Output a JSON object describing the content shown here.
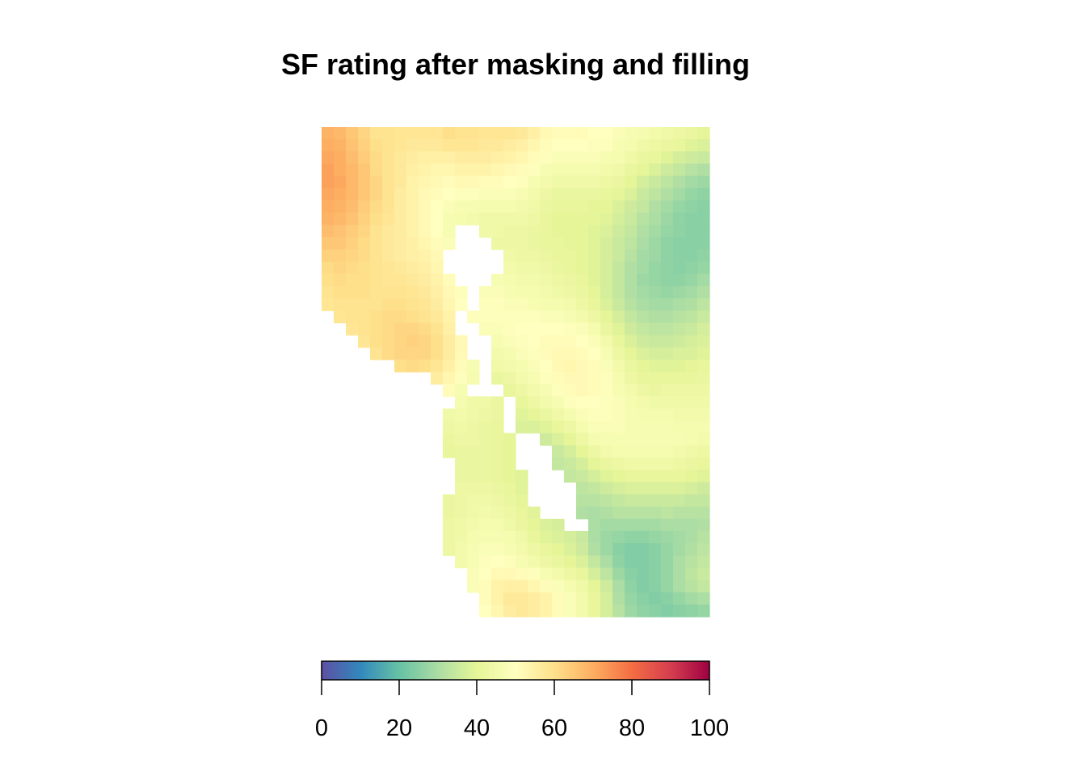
{
  "chart_data": {
    "type": "heatmap",
    "title": "SF rating after masking and filling",
    "xlabel": "",
    "ylabel": "",
    "grid": false,
    "legend": "bottom",
    "colorbar": {
      "min": 0,
      "max": 100,
      "ticks": [
        0,
        20,
        40,
        60,
        80,
        100
      ],
      "tick_labels": [
        "0",
        "20",
        "40",
        "60",
        "80",
        "100"
      ],
      "palette": [
        "#5E4FA2",
        "#3288BD",
        "#66C2A5",
        "#ABDDA4",
        "#E6F598",
        "#FFFFBF",
        "#FEE08B",
        "#FDAE61",
        "#F46D43",
        "#D53E4F",
        "#9E0142"
      ]
    },
    "grid_size": {
      "cols": 32,
      "rows": 40
    },
    "values": [
      [
        69,
        68,
        65,
        62,
        59,
        59,
        58,
        58,
        58,
        58,
        60,
        59,
        59,
        58,
        58,
        58,
        57,
        55,
        52,
        51,
        51,
        51,
        50,
        50,
        48,
        47,
        46,
        45,
        44,
        43,
        42,
        40
      ],
      [
        70,
        69,
        66,
        63,
        60,
        59,
        58,
        57,
        57,
        57,
        58,
        58,
        58,
        57,
        57,
        56,
        55,
        53,
        51,
        50,
        50,
        50,
        49,
        49,
        47,
        46,
        44,
        43,
        42,
        41,
        39,
        38
      ],
      [
        71,
        70,
        67,
        64,
        61,
        59,
        57,
        56,
        55,
        55,
        55,
        56,
        56,
        56,
        55,
        54,
        53,
        51,
        49,
        48,
        48,
        48,
        48,
        47,
        46,
        44,
        42,
        41,
        39,
        37,
        36,
        35
      ],
      [
        72,
        70,
        68,
        65,
        61,
        59,
        57,
        55,
        54,
        53,
        53,
        54,
        54,
        54,
        53,
        52,
        51,
        49,
        47,
        46,
        46,
        46,
        46,
        45,
        44,
        42,
        40,
        38,
        36,
        34,
        32,
        31
      ],
      [
        72,
        71,
        68,
        65,
        62,
        59,
        57,
        54,
        53,
        52,
        51,
        52,
        52,
        51,
        51,
        50,
        49,
        47,
        45,
        44,
        44,
        44,
        44,
        43,
        42,
        40,
        37,
        35,
        33,
        31,
        29,
        28
      ],
      [
        71,
        70,
        68,
        65,
        62,
        59,
        56,
        54,
        52,
        51,
        50,
        49,
        49,
        48,
        48,
        48,
        47,
        45,
        43,
        42,
        42,
        42,
        42,
        41,
        40,
        38,
        35,
        33,
        31,
        29,
        27,
        26
      ],
      [
        70,
        69,
        67,
        64,
        61,
        59,
        56,
        54,
        52,
        50,
        48,
        47,
        47,
        46,
        46,
        46,
        45,
        44,
        42,
        41,
        41,
        41,
        40,
        40,
        38,
        36,
        34,
        31,
        29,
        27,
        26,
        25
      ],
      [
        69,
        68,
        66,
        63,
        60,
        58,
        56,
        54,
        52,
        50,
        47,
        46,
        45,
        44,
        44,
        44,
        44,
        43,
        41,
        40,
        40,
        40,
        40,
        39,
        37,
        35,
        32,
        30,
        28,
        26,
        25,
        25
      ],
      [
        67,
        66,
        64,
        62,
        59,
        57,
        56,
        54,
        52,
        50,
        47,
        null,
        null,
        44,
        44,
        43,
        43,
        42,
        41,
        40,
        40,
        40,
        39,
        38,
        36,
        34,
        31,
        29,
        27,
        26,
        25,
        25
      ],
      [
        65,
        65,
        63,
        61,
        59,
        57,
        56,
        55,
        53,
        51,
        48,
        null,
        null,
        null,
        43,
        43,
        43,
        42,
        41,
        41,
        40,
        40,
        39,
        37,
        35,
        33,
        30,
        28,
        26,
        25,
        25,
        25
      ],
      [
        63,
        63,
        62,
        61,
        59,
        57,
        56,
        55,
        54,
        52,
        null,
        null,
        null,
        null,
        null,
        44,
        43,
        43,
        42,
        41,
        41,
        40,
        39,
        37,
        35,
        32,
        29,
        28,
        26,
        25,
        25,
        26
      ],
      [
        61,
        62,
        61,
        60,
        59,
        58,
        57,
        56,
        55,
        53,
        null,
        null,
        null,
        null,
        null,
        45,
        44,
        44,
        43,
        42,
        41,
        40,
        39,
        37,
        34,
        31,
        29,
        27,
        26,
        25,
        26,
        27
      ],
      [
        60,
        61,
        60,
        60,
        59,
        58,
        58,
        57,
        56,
        54,
        51,
        null,
        null,
        null,
        47,
        46,
        45,
        45,
        44,
        43,
        42,
        41,
        39,
        37,
        34,
        31,
        28,
        27,
        26,
        26,
        27,
        29
      ],
      [
        59,
        60,
        60,
        60,
        59,
        59,
        59,
        58,
        57,
        55,
        52,
        49,
        null,
        48,
        48,
        47,
        46,
        46,
        45,
        44,
        43,
        42,
        40,
        37,
        34,
        31,
        29,
        28,
        27,
        28,
        29,
        31
      ],
      [
        58,
        59,
        59,
        59,
        59,
        60,
        60,
        59,
        58,
        56,
        53,
        50,
        null,
        49,
        49,
        48,
        48,
        47,
        46,
        46,
        45,
        43,
        41,
        38,
        35,
        32,
        30,
        29,
        29,
        30,
        31,
        33
      ],
      [
        null,
        58,
        59,
        59,
        60,
        61,
        61,
        60,
        59,
        57,
        54,
        null,
        49,
        49,
        49,
        49,
        49,
        49,
        48,
        48,
        47,
        45,
        43,
        40,
        37,
        34,
        32,
        31,
        31,
        32,
        33,
        35
      ],
      [
        null,
        null,
        58,
        59,
        60,
        61,
        62,
        62,
        61,
        59,
        55,
        null,
        null,
        48,
        48,
        49,
        50,
        50,
        50,
        50,
        49,
        48,
        46,
        42,
        39,
        36,
        34,
        33,
        33,
        34,
        35,
        37
      ],
      [
        null,
        null,
        null,
        58,
        60,
        61,
        62,
        63,
        62,
        60,
        56,
        52,
        null,
        null,
        47,
        48,
        49,
        50,
        51,
        51,
        51,
        50,
        48,
        45,
        41,
        38,
        36,
        35,
        35,
        36,
        37,
        38
      ],
      [
        null,
        null,
        null,
        null,
        59,
        61,
        62,
        62,
        62,
        60,
        56,
        52,
        null,
        null,
        45,
        46,
        48,
        49,
        51,
        52,
        52,
        51,
        50,
        47,
        43,
        40,
        38,
        37,
        37,
        38,
        38,
        39
      ],
      [
        null,
        null,
        null,
        null,
        null,
        null,
        60,
        61,
        60,
        58,
        55,
        51,
        47,
        null,
        44,
        45,
        46,
        48,
        50,
        52,
        53,
        52,
        51,
        48,
        45,
        42,
        40,
        39,
        39,
        39,
        40,
        41
      ],
      [
        null,
        null,
        null,
        null,
        null,
        null,
        null,
        null,
        null,
        56,
        53,
        49,
        46,
        null,
        42,
        43,
        45,
        47,
        49,
        51,
        52,
        52,
        51,
        49,
        46,
        43,
        41,
        41,
        41,
        41,
        41,
        42
      ],
      [
        null,
        null,
        null,
        null,
        null,
        null,
        null,
        null,
        null,
        null,
        51,
        47,
        null,
        null,
        null,
        41,
        43,
        45,
        47,
        49,
        51,
        52,
        51,
        49,
        47,
        45,
        43,
        42,
        43,
        43,
        43,
        43
      ],
      [
        null,
        null,
        null,
        null,
        null,
        null,
        null,
        null,
        null,
        null,
        null,
        46,
        44,
        44,
        42,
        null,
        41,
        43,
        45,
        47,
        49,
        50,
        50,
        49,
        48,
        46,
        45,
        44,
        44,
        44,
        44,
        44
      ],
      [
        null,
        null,
        null,
        null,
        null,
        null,
        null,
        null,
        null,
        null,
        44,
        45,
        44,
        43,
        42,
        null,
        39,
        40,
        42,
        44,
        46,
        48,
        49,
        49,
        48,
        47,
        46,
        46,
        46,
        45,
        45,
        45
      ],
      [
        null,
        null,
        null,
        null,
        null,
        null,
        null,
        null,
        null,
        null,
        43,
        44,
        43,
        42,
        41,
        null,
        38,
        38,
        39,
        41,
        43,
        46,
        48,
        48,
        48,
        47,
        47,
        47,
        47,
        46,
        46,
        46
      ],
      [
        null,
        null,
        null,
        null,
        null,
        null,
        null,
        null,
        null,
        null,
        42,
        43,
        43,
        42,
        41,
        40,
        null,
        null,
        36,
        38,
        40,
        43,
        46,
        47,
        47,
        47,
        47,
        47,
        47,
        47,
        46,
        45
      ],
      [
        null,
        null,
        null,
        null,
        null,
        null,
        null,
        null,
        null,
        null,
        41,
        42,
        42,
        42,
        41,
        40,
        null,
        null,
        null,
        35,
        37,
        40,
        43,
        45,
        46,
        46,
        46,
        46,
        46,
        45,
        44,
        43
      ],
      [
        null,
        null,
        null,
        null,
        null,
        null,
        null,
        null,
        null,
        null,
        null,
        42,
        42,
        42,
        41,
        40,
        null,
        null,
        null,
        34,
        35,
        37,
        40,
        42,
        43,
        44,
        44,
        44,
        44,
        43,
        42,
        41
      ],
      [
        null,
        null,
        null,
        null,
        null,
        null,
        null,
        null,
        null,
        null,
        null,
        42,
        42,
        42,
        41,
        40,
        39,
        null,
        null,
        null,
        34,
        35,
        37,
        39,
        40,
        41,
        41,
        41,
        41,
        41,
        40,
        39
      ],
      [
        null,
        null,
        null,
        null,
        null,
        null,
        null,
        null,
        null,
        null,
        null,
        43,
        43,
        43,
        42,
        41,
        39,
        null,
        null,
        null,
        null,
        33,
        34,
        36,
        37,
        38,
        38,
        38,
        38,
        38,
        37,
        36
      ],
      [
        null,
        null,
        null,
        null,
        null,
        null,
        null,
        null,
        null,
        null,
        42,
        43,
        44,
        44,
        43,
        42,
        40,
        null,
        null,
        null,
        null,
        32,
        32,
        33,
        34,
        35,
        35,
        35,
        35,
        35,
        34,
        34
      ],
      [
        null,
        null,
        null,
        null,
        null,
        null,
        null,
        null,
        null,
        null,
        42,
        43,
        44,
        45,
        44,
        43,
        41,
        39,
        null,
        null,
        null,
        31,
        30,
        31,
        32,
        32,
        32,
        32,
        33,
        32,
        32,
        32
      ],
      [
        null,
        null,
        null,
        null,
        null,
        null,
        null,
        null,
        null,
        null,
        43,
        44,
        45,
        46,
        46,
        44,
        42,
        40,
        38,
        37,
        null,
        null,
        30,
        29,
        29,
        29,
        29,
        29,
        30,
        30,
        30,
        31
      ],
      [
        null,
        null,
        null,
        null,
        null,
        null,
        null,
        null,
        null,
        null,
        43,
        44,
        46,
        47,
        47,
        46,
        44,
        41,
        39,
        38,
        37,
        35,
        30,
        28,
        27,
        26,
        26,
        27,
        28,
        29,
        30,
        32
      ],
      [
        null,
        null,
        null,
        null,
        null,
        null,
        null,
        null,
        null,
        null,
        43,
        45,
        47,
        48,
        48,
        47,
        45,
        43,
        41,
        40,
        38,
        36,
        31,
        28,
        25,
        24,
        24,
        25,
        27,
        29,
        31,
        33
      ],
      [
        null,
        null,
        null,
        null,
        null,
        null,
        null,
        null,
        null,
        null,
        null,
        45,
        47,
        49,
        50,
        49,
        47,
        45,
        43,
        42,
        40,
        38,
        34,
        30,
        26,
        24,
        24,
        25,
        27,
        30,
        32,
        34
      ],
      [
        null,
        null,
        null,
        null,
        null,
        null,
        null,
        null,
        null,
        null,
        null,
        null,
        48,
        50,
        52,
        52,
        51,
        49,
        47,
        45,
        43,
        41,
        37,
        33,
        28,
        25,
        24,
        25,
        27,
        30,
        33,
        35
      ],
      [
        null,
        null,
        null,
        null,
        null,
        null,
        null,
        null,
        null,
        null,
        null,
        null,
        48,
        51,
        54,
        55,
        55,
        53,
        51,
        48,
        46,
        44,
        40,
        36,
        30,
        26,
        24,
        25,
        27,
        30,
        32,
        34
      ],
      [
        null,
        null,
        null,
        null,
        null,
        null,
        null,
        null,
        null,
        null,
        null,
        null,
        null,
        51,
        54,
        57,
        57,
        56,
        54,
        51,
        48,
        45,
        41,
        37,
        31,
        27,
        25,
        24,
        25,
        27,
        29,
        30
      ],
      [
        null,
        null,
        null,
        null,
        null,
        null,
        null,
        null,
        null,
        null,
        null,
        null,
        null,
        50,
        53,
        56,
        57,
        56,
        54,
        51,
        48,
        45,
        41,
        37,
        32,
        28,
        26,
        25,
        24,
        25,
        26,
        27
      ]
    ]
  }
}
